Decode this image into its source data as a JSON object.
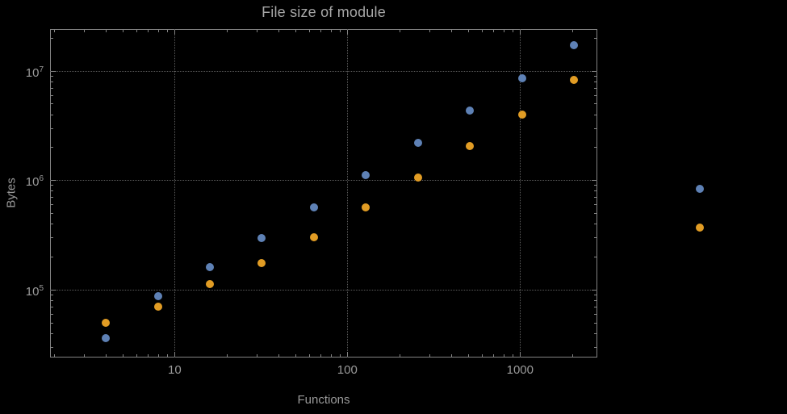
{
  "chart_data": {
    "type": "scatter",
    "title": "File size of module",
    "xlabel": "Functions",
    "ylabel": "Bytes",
    "xscale": "log",
    "yscale": "log",
    "xlim": [
      1.9,
      2800
    ],
    "ylim": [
      24000,
      24000000
    ],
    "grid": true,
    "legend": "none",
    "x_ticks": [
      10,
      100,
      1000
    ],
    "x_tick_labels": [
      "10",
      "100",
      "1000"
    ],
    "y_tick_exponents": [
      5,
      6,
      7
    ],
    "series": [
      {
        "name": "series-blue",
        "color": "#5e81b5",
        "points": [
          [
            4,
            36000
          ],
          [
            8,
            87000
          ],
          [
            16,
            160000
          ],
          [
            32,
            295000
          ],
          [
            64,
            560000
          ],
          [
            128,
            1120000
          ],
          [
            256,
            2200000
          ],
          [
            512,
            4300000
          ],
          [
            1024,
            8500000
          ],
          [
            2048,
            17000000
          ],
          [
            11000,
            830000
          ]
        ]
      },
      {
        "name": "series-orange",
        "color": "#e19c24",
        "points": [
          [
            4,
            50000
          ],
          [
            8,
            70000
          ],
          [
            16,
            112000
          ],
          [
            32,
            175000
          ],
          [
            64,
            300000
          ],
          [
            128,
            560000
          ],
          [
            256,
            1050000
          ],
          [
            512,
            2050000
          ],
          [
            1024,
            4000000
          ],
          [
            2048,
            8200000
          ],
          [
            11000,
            370000
          ]
        ]
      }
    ],
    "colors": {
      "background": "#000000",
      "frame": "#848484",
      "grid": "#5b5b5b",
      "text": "#9a9a9a"
    }
  }
}
